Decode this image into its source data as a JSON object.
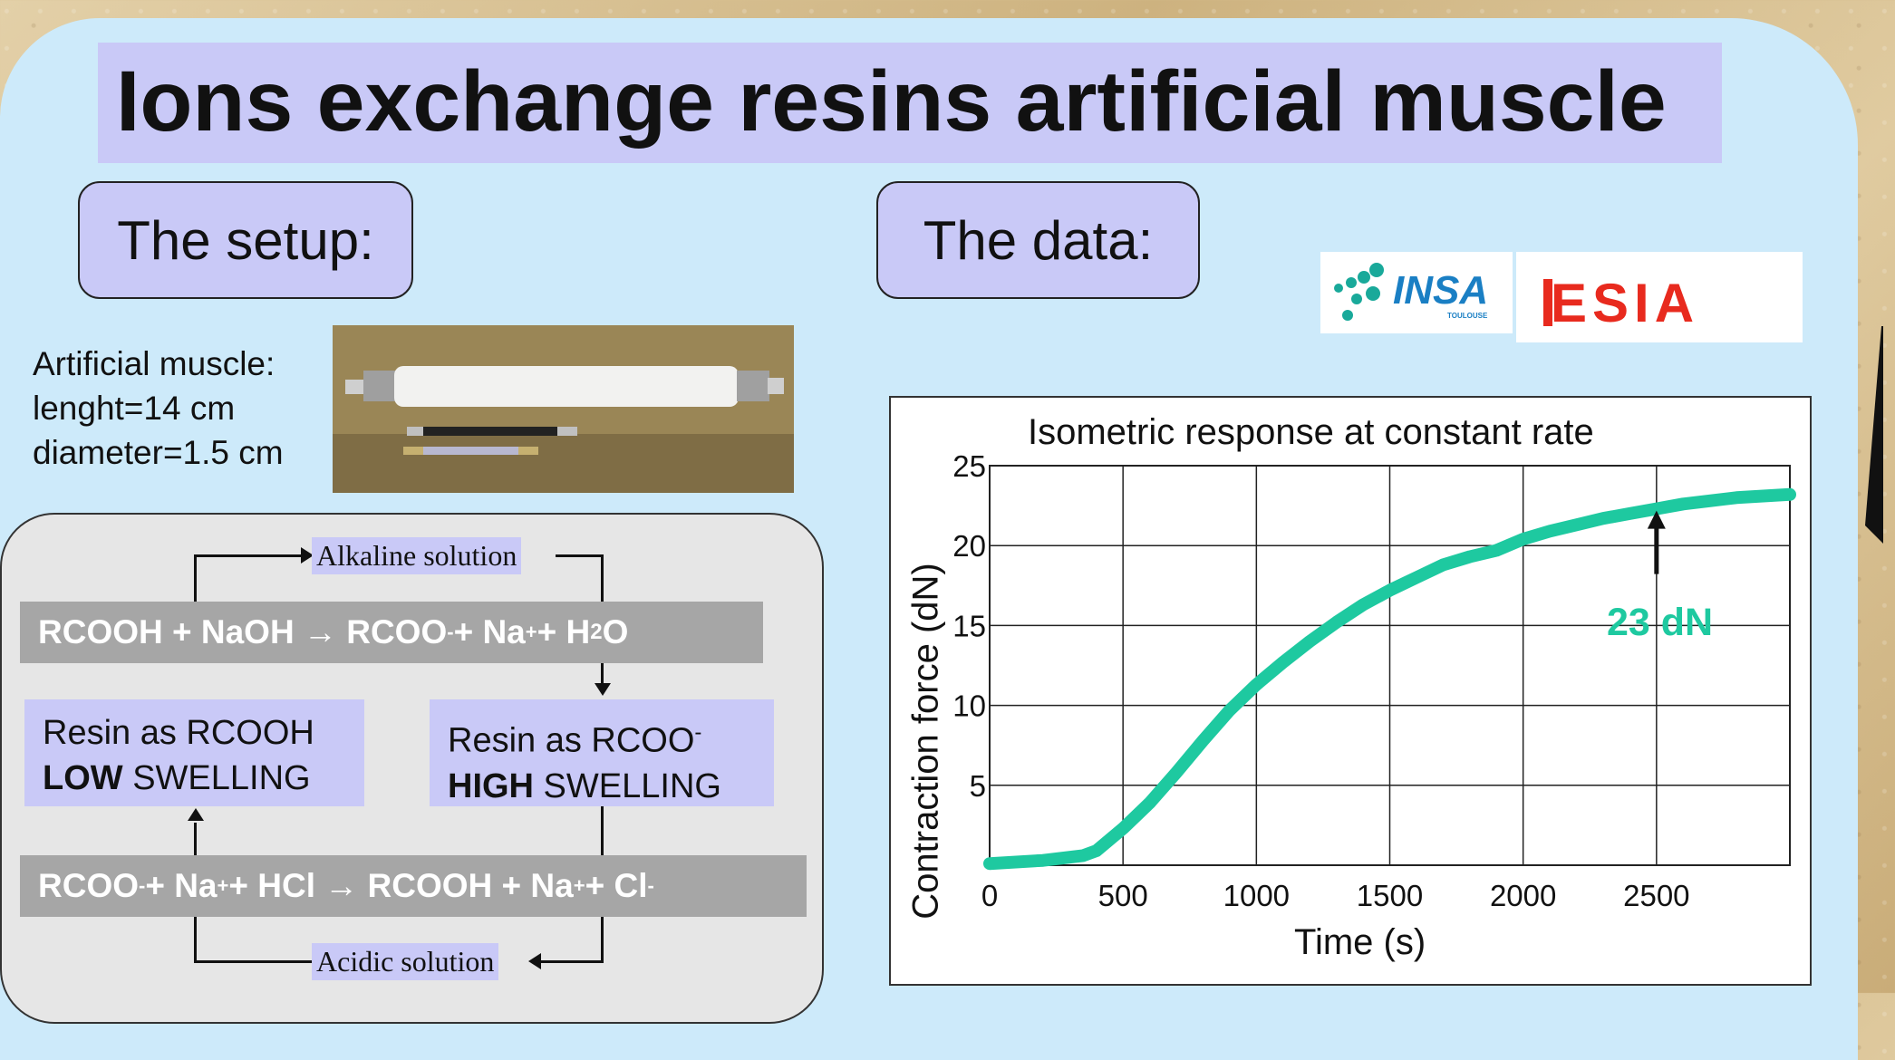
{
  "slide": {
    "title": "Ions exchange resins artificial muscle",
    "setup_label": "The setup:",
    "data_label": "The data:"
  },
  "muscle_info": {
    "line1": "Artificial muscle:",
    "line2": "lenght=14 cm",
    "line3": "diameter=1.5 cm"
  },
  "logos": {
    "insa": "INSA",
    "insa_sub": "TOULOUSE",
    "esia": "ESIA"
  },
  "cycle": {
    "alkaline": "Alkaline solution",
    "acidic": "Acidic solution",
    "reaction_top": {
      "a": "RCOOH + NaOH → RCOO",
      "a_sup": "-",
      "b": " + Na",
      "b_sup": "+",
      "c": " + H",
      "c_sub": "2",
      "d": "O"
    },
    "reaction_bottom": {
      "a": "RCOO",
      "a_sup": "-",
      "b": " + Na",
      "b_sup": "+",
      "c": " + HCl → RCOOH + Na",
      "c_sup": "+",
      "d": " + Cl",
      "d_sup": "-"
    },
    "resin_left": {
      "line1": "Resin as RCOOH",
      "bold": "LOW",
      "rest": " SWELLING"
    },
    "resin_right": {
      "line1": "Resin as RCOO",
      "line1_sup": "-",
      "bold": "HIGH",
      "rest": " SWELLING"
    }
  },
  "chart_data": {
    "type": "line",
    "title": "Isometric response at constant rate",
    "xlabel": "Time (s)",
    "ylabel": "Contraction force (dN)",
    "xlim": [
      0,
      3000
    ],
    "ylim": [
      0,
      25
    ],
    "xticks": [
      0,
      500,
      1000,
      1500,
      2000,
      2500
    ],
    "yticks": [
      5,
      10,
      15,
      20,
      25
    ],
    "grid": true,
    "series": [
      {
        "color": "#1ec9a0",
        "x": [
          0,
          200,
          350,
          400,
          500,
          600,
          700,
          800,
          900,
          1000,
          1100,
          1200,
          1300,
          1400,
          1500,
          1600,
          1700,
          1800,
          1900,
          2000,
          2100,
          2200,
          2300,
          2400,
          2500,
          2600,
          2700,
          2800,
          3000
        ],
        "y": [
          0.1,
          0.3,
          0.6,
          0.9,
          2.3,
          3.9,
          5.8,
          7.8,
          9.7,
          11.3,
          12.7,
          14.0,
          15.2,
          16.3,
          17.2,
          18.0,
          18.8,
          19.3,
          19.7,
          20.4,
          20.9,
          21.3,
          21.7,
          22.0,
          22.3,
          22.6,
          22.8,
          23.0,
          23.2
        ]
      }
    ],
    "annotation": {
      "text": "23 dN",
      "x": 2500,
      "y": 22.3
    }
  }
}
